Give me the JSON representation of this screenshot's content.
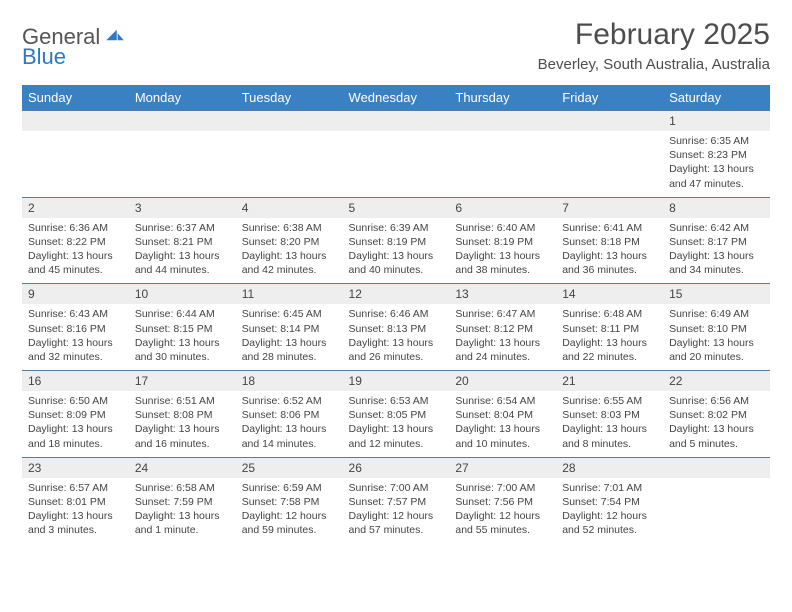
{
  "logo": {
    "word1": "General",
    "word2": "Blue"
  },
  "colors": {
    "header_bg": "#3a81c4",
    "header_text": "#ffffff",
    "daynum_bg": "#eeeeee",
    "daynum_border": "#5a7ba0",
    "body_text": "#444444",
    "logo_blue": "#2c7abf",
    "title_color": "#4d4d4d"
  },
  "title": "February 2025",
  "location": "Beverley, South Australia, Australia",
  "day_headers": [
    "Sunday",
    "Monday",
    "Tuesday",
    "Wednesday",
    "Thursday",
    "Friday",
    "Saturday"
  ],
  "layout": {
    "start_weekday_index": 6,
    "days_in_month": 28
  },
  "days": {
    "1": {
      "sunrise": "6:35 AM",
      "sunset": "8:23 PM",
      "daylight": "13 hours and 47 minutes."
    },
    "2": {
      "sunrise": "6:36 AM",
      "sunset": "8:22 PM",
      "daylight": "13 hours and 45 minutes."
    },
    "3": {
      "sunrise": "6:37 AM",
      "sunset": "8:21 PM",
      "daylight": "13 hours and 44 minutes."
    },
    "4": {
      "sunrise": "6:38 AM",
      "sunset": "8:20 PM",
      "daylight": "13 hours and 42 minutes."
    },
    "5": {
      "sunrise": "6:39 AM",
      "sunset": "8:19 PM",
      "daylight": "13 hours and 40 minutes."
    },
    "6": {
      "sunrise": "6:40 AM",
      "sunset": "8:19 PM",
      "daylight": "13 hours and 38 minutes."
    },
    "7": {
      "sunrise": "6:41 AM",
      "sunset": "8:18 PM",
      "daylight": "13 hours and 36 minutes."
    },
    "8": {
      "sunrise": "6:42 AM",
      "sunset": "8:17 PM",
      "daylight": "13 hours and 34 minutes."
    },
    "9": {
      "sunrise": "6:43 AM",
      "sunset": "8:16 PM",
      "daylight": "13 hours and 32 minutes."
    },
    "10": {
      "sunrise": "6:44 AM",
      "sunset": "8:15 PM",
      "daylight": "13 hours and 30 minutes."
    },
    "11": {
      "sunrise": "6:45 AM",
      "sunset": "8:14 PM",
      "daylight": "13 hours and 28 minutes."
    },
    "12": {
      "sunrise": "6:46 AM",
      "sunset": "8:13 PM",
      "daylight": "13 hours and 26 minutes."
    },
    "13": {
      "sunrise": "6:47 AM",
      "sunset": "8:12 PM",
      "daylight": "13 hours and 24 minutes."
    },
    "14": {
      "sunrise": "6:48 AM",
      "sunset": "8:11 PM",
      "daylight": "13 hours and 22 minutes."
    },
    "15": {
      "sunrise": "6:49 AM",
      "sunset": "8:10 PM",
      "daylight": "13 hours and 20 minutes."
    },
    "16": {
      "sunrise": "6:50 AM",
      "sunset": "8:09 PM",
      "daylight": "13 hours and 18 minutes."
    },
    "17": {
      "sunrise": "6:51 AM",
      "sunset": "8:08 PM",
      "daylight": "13 hours and 16 minutes."
    },
    "18": {
      "sunrise": "6:52 AM",
      "sunset": "8:06 PM",
      "daylight": "13 hours and 14 minutes."
    },
    "19": {
      "sunrise": "6:53 AM",
      "sunset": "8:05 PM",
      "daylight": "13 hours and 12 minutes."
    },
    "20": {
      "sunrise": "6:54 AM",
      "sunset": "8:04 PM",
      "daylight": "13 hours and 10 minutes."
    },
    "21": {
      "sunrise": "6:55 AM",
      "sunset": "8:03 PM",
      "daylight": "13 hours and 8 minutes."
    },
    "22": {
      "sunrise": "6:56 AM",
      "sunset": "8:02 PM",
      "daylight": "13 hours and 5 minutes."
    },
    "23": {
      "sunrise": "6:57 AM",
      "sunset": "8:01 PM",
      "daylight": "13 hours and 3 minutes."
    },
    "24": {
      "sunrise": "6:58 AM",
      "sunset": "7:59 PM",
      "daylight": "13 hours and 1 minute."
    },
    "25": {
      "sunrise": "6:59 AM",
      "sunset": "7:58 PM",
      "daylight": "12 hours and 59 minutes."
    },
    "26": {
      "sunrise": "7:00 AM",
      "sunset": "7:57 PM",
      "daylight": "12 hours and 57 minutes."
    },
    "27": {
      "sunrise": "7:00 AM",
      "sunset": "7:56 PM",
      "daylight": "12 hours and 55 minutes."
    },
    "28": {
      "sunrise": "7:01 AM",
      "sunset": "7:54 PM",
      "daylight": "12 hours and 52 minutes."
    }
  },
  "labels": {
    "sunrise": "Sunrise:",
    "sunset": "Sunset:",
    "daylight": "Daylight:"
  }
}
